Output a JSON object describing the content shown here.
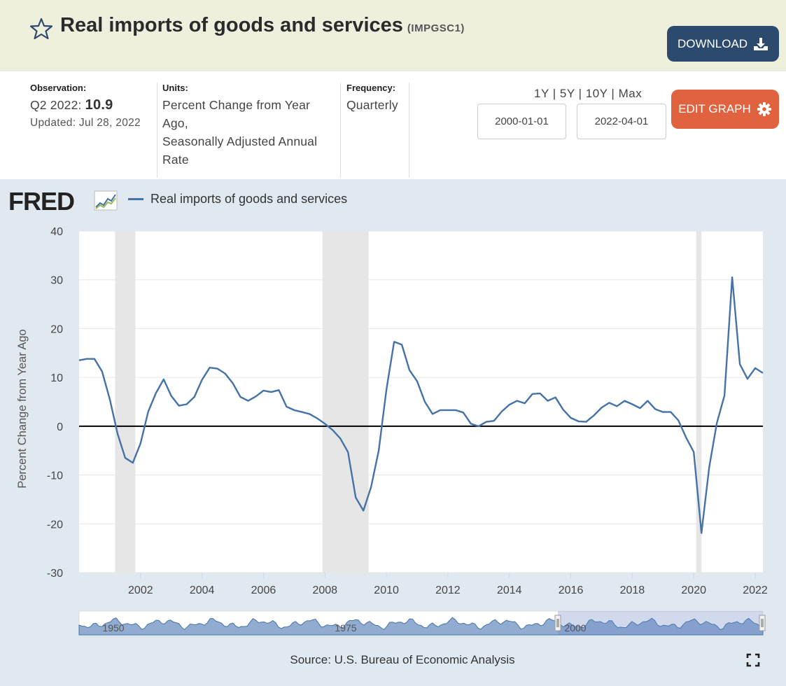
{
  "header": {
    "title": "Real imports of goods and services",
    "series_id": "(IMPGSC1)",
    "download_label": "DOWNLOAD"
  },
  "meta": {
    "observation_label": "Observation:",
    "observation_period": "Q2 2022:",
    "observation_value": "10.9",
    "updated": "Updated: Jul 28, 2022",
    "units_label": "Units:",
    "units_lines": [
      "Percent Change from Year",
      "Ago,",
      "Seasonally Adjusted Annual",
      "Rate"
    ],
    "frequency_label": "Frequency:",
    "frequency_value": "Quarterly",
    "ranges": [
      "1Y",
      "5Y",
      "10Y",
      "Max"
    ],
    "start_date": "2000-01-01",
    "end_date": "2022-04-01",
    "edit_label": "EDIT GRAPH"
  },
  "logo_text": "FRED",
  "source": "Source: U.S. Bureau of Economic Analysis",
  "colors": {
    "line": "#4572a7",
    "recession": "#e6e6e6",
    "zero": "#000000",
    "header_bg": "#efefdd",
    "chart_bg": "#e1e9f0",
    "download_btn": "#2c4a6e",
    "edit_btn": "#e0623f"
  },
  "chart_data": {
    "type": "line",
    "title": "Real imports of goods and services",
    "ylabel": "Percent Change from Year Ago",
    "xlabel": "",
    "ylim": [
      -30,
      40
    ],
    "xlim": [
      2000.0,
      2022.25
    ],
    "yticks": [
      40,
      30,
      20,
      10,
      0,
      -10,
      -20,
      -30
    ],
    "xticks": [
      2002,
      2004,
      2006,
      2008,
      2010,
      2012,
      2014,
      2016,
      2018,
      2020,
      2022
    ],
    "recessions": [
      [
        2001.17,
        2001.83
      ],
      [
        2007.92,
        2009.42
      ],
      [
        2020.08,
        2020.25
      ]
    ],
    "navigator_labels": [
      "1950",
      "1975",
      "2000"
    ],
    "series": [
      {
        "name": "Real imports of goods and services",
        "x": [
          2000.0,
          2000.25,
          2000.5,
          2000.75,
          2001.0,
          2001.25,
          2001.5,
          2001.75,
          2002.0,
          2002.25,
          2002.5,
          2002.75,
          2003.0,
          2003.25,
          2003.5,
          2003.75,
          2004.0,
          2004.25,
          2004.5,
          2004.75,
          2005.0,
          2005.25,
          2005.5,
          2005.75,
          2006.0,
          2006.25,
          2006.5,
          2006.75,
          2007.0,
          2007.25,
          2007.5,
          2007.75,
          2008.0,
          2008.25,
          2008.5,
          2008.75,
          2009.0,
          2009.25,
          2009.5,
          2009.75,
          2010.0,
          2010.25,
          2010.5,
          2010.75,
          2011.0,
          2011.25,
          2011.5,
          2011.75,
          2012.0,
          2012.25,
          2012.5,
          2012.75,
          2013.0,
          2013.25,
          2013.5,
          2013.75,
          2014.0,
          2014.25,
          2014.5,
          2014.75,
          2015.0,
          2015.25,
          2015.5,
          2015.75,
          2016.0,
          2016.25,
          2016.5,
          2016.75,
          2017.0,
          2017.25,
          2017.5,
          2017.75,
          2018.0,
          2018.25,
          2018.5,
          2018.75,
          2019.0,
          2019.25,
          2019.5,
          2019.75,
          2020.0,
          2020.25,
          2020.5,
          2020.75,
          2021.0,
          2021.25,
          2021.5,
          2021.75,
          2022.0,
          2022.25
        ],
        "values": [
          13.5,
          13.8,
          13.8,
          11.2,
          5.5,
          -1.5,
          -6.5,
          -7.5,
          -3.5,
          3.0,
          6.8,
          9.6,
          6.2,
          4.2,
          4.5,
          6.0,
          9.5,
          12.0,
          11.8,
          10.8,
          8.8,
          6.0,
          5.2,
          6.1,
          7.3,
          7.0,
          7.4,
          4.0,
          3.3,
          2.9,
          2.5,
          1.6,
          0.5,
          -0.8,
          -2.5,
          -5.3,
          -14.6,
          -17.3,
          -12.5,
          -5.0,
          7.5,
          17.3,
          16.7,
          11.5,
          9.2,
          5.0,
          2.5,
          3.3,
          3.3,
          3.3,
          2.8,
          0.5,
          0.0,
          0.9,
          1.1,
          3.0,
          4.4,
          5.2,
          4.7,
          6.6,
          6.7,
          5.2,
          5.9,
          3.4,
          1.7,
          1.0,
          0.9,
          2.2,
          3.8,
          4.8,
          4.1,
          5.2,
          4.5,
          3.7,
          5.2,
          3.5,
          2.9,
          2.9,
          1.2,
          -2.3,
          -5.3,
          -21.9,
          -8.5,
          0.6,
          6.3,
          30.5,
          12.7,
          9.7,
          11.9,
          10.9
        ]
      }
    ]
  }
}
